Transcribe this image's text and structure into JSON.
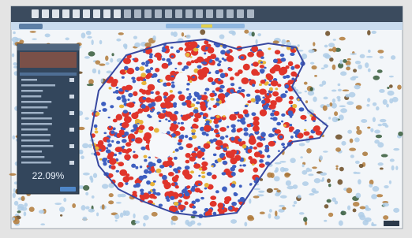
{
  "panel": {
    "result": "22.09%"
  }
}
